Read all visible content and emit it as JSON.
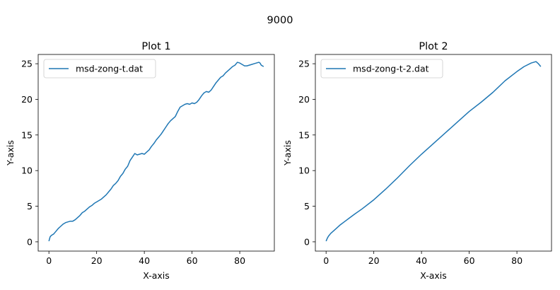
{
  "figure": {
    "suptitle": "9000"
  },
  "chart_data": [
    {
      "type": "line",
      "title": "Plot 1",
      "xlabel": "X-axis",
      "ylabel": "Y-axis",
      "xlim": [
        -4.5,
        94.5
      ],
      "ylim": [
        -1.3,
        26.3
      ],
      "xticks": [
        0,
        20,
        40,
        60,
        80
      ],
      "yticks": [
        0,
        5,
        10,
        15,
        20,
        25
      ],
      "grid": false,
      "legend": "top-left",
      "series": [
        {
          "name": "msd-zong-t.dat",
          "color": "#1f77b4",
          "x": [
            0,
            0.5,
            1,
            2,
            3,
            4,
            5,
            6,
            7,
            8,
            9,
            10,
            11,
            12,
            13,
            14,
            15,
            16,
            17,
            18,
            19,
            20,
            21,
            22,
            23,
            24,
            25,
            26,
            27,
            28,
            29,
            30,
            31,
            32,
            33,
            34,
            35,
            36,
            37,
            38,
            39,
            40,
            41,
            42,
            43,
            44,
            45,
            46,
            47,
            48,
            49,
            50,
            51,
            52,
            53,
            54,
            55,
            56,
            57,
            58,
            59,
            60,
            61,
            62,
            63,
            64,
            65,
            66,
            67,
            68,
            69,
            70,
            71,
            72,
            73,
            74,
            75,
            76,
            77,
            78,
            79,
            80,
            81,
            82,
            83,
            84,
            85,
            86,
            87,
            88,
            88.5,
            89,
            89.5,
            90
          ],
          "y": [
            0.1,
            0.7,
            0.9,
            1.1,
            1.5,
            1.9,
            2.2,
            2.5,
            2.7,
            2.8,
            2.9,
            2.9,
            3.1,
            3.4,
            3.7,
            4.1,
            4.3,
            4.6,
            4.9,
            5.1,
            5.4,
            5.6,
            5.8,
            6.0,
            6.3,
            6.6,
            7.0,
            7.4,
            7.9,
            8.2,
            8.6,
            9.2,
            9.6,
            10.2,
            10.6,
            11.4,
            11.9,
            12.4,
            12.2,
            12.3,
            12.4,
            12.3,
            12.6,
            12.9,
            13.4,
            13.8,
            14.3,
            14.7,
            15.1,
            15.6,
            16.1,
            16.6,
            17.0,
            17.3,
            17.6,
            18.3,
            18.9,
            19.1,
            19.3,
            19.4,
            19.3,
            19.5,
            19.4,
            19.6,
            20.0,
            20.5,
            20.9,
            21.1,
            21.0,
            21.3,
            21.8,
            22.3,
            22.7,
            23.1,
            23.3,
            23.7,
            24.0,
            24.3,
            24.6,
            24.8,
            25.2,
            25.1,
            24.9,
            24.7,
            24.7,
            24.8,
            24.9,
            25.0,
            25.1,
            25.2,
            25.1,
            24.8,
            24.7,
            24.6
          ]
        }
      ]
    },
    {
      "type": "line",
      "title": "Plot 2",
      "xlabel": "X-axis",
      "ylabel": "Y-axis",
      "xlim": [
        -4.5,
        94.5
      ],
      "ylim": [
        -1.3,
        26.3
      ],
      "xticks": [
        0,
        20,
        40,
        60,
        80
      ],
      "yticks": [
        0,
        5,
        10,
        15,
        20,
        25
      ],
      "grid": false,
      "legend": "top-left",
      "series": [
        {
          "name": "msd-zong-t-2.dat",
          "color": "#1f77b4",
          "x": [
            0,
            0.5,
            1,
            2,
            4,
            6,
            8,
            10,
            12,
            15,
            20,
            25,
            30,
            35,
            40,
            45,
            50,
            55,
            60,
            65,
            70,
            75,
            80,
            83,
            86,
            88,
            89,
            90
          ],
          "y": [
            0.1,
            0.5,
            0.8,
            1.2,
            1.8,
            2.4,
            2.9,
            3.4,
            3.9,
            4.6,
            5.9,
            7.4,
            9.0,
            10.7,
            12.3,
            13.8,
            15.3,
            16.8,
            18.3,
            19.6,
            21.0,
            22.6,
            23.9,
            24.6,
            25.1,
            25.3,
            25.0,
            24.6
          ]
        }
      ]
    }
  ]
}
